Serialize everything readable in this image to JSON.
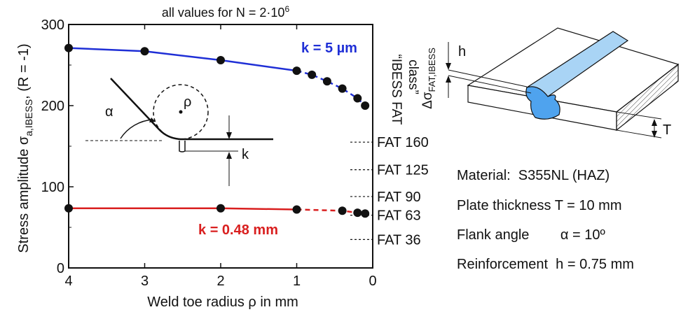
{
  "chart_data": {
    "type": "line",
    "title": "all values for N = 2·10",
    "title_sup": "6",
    "xlabel": "Weld toe radius ρ in mm",
    "ylabel_main": "Stress amplitude σ",
    "ylabel_sub": "a,IBESS",
    "ylabel_tail": ", (R = -1)",
    "xlim": [
      4,
      0
    ],
    "ylim": [
      0,
      300
    ],
    "x_ticks": [
      "4",
      "3",
      "2",
      "1",
      "0"
    ],
    "y_ticks": [
      "0",
      "100",
      "200",
      "300"
    ],
    "grid": false,
    "series": [
      {
        "name": "k = 5 µm",
        "color": "#1f2fd6",
        "points": [
          [
            4,
            271
          ],
          [
            3,
            267
          ],
          [
            2,
            256
          ],
          [
            1,
            243
          ],
          [
            0.8,
            238
          ],
          [
            0.6,
            230
          ],
          [
            0.4,
            221
          ],
          [
            0.2,
            209
          ],
          [
            0.1,
            200
          ]
        ]
      },
      {
        "name": "k = 0.48 mm",
        "color": "#d91f1f",
        "points": [
          [
            4,
            73.5
          ],
          [
            2,
            73.5
          ],
          [
            1,
            72
          ],
          [
            0.4,
            70.5
          ],
          [
            0.2,
            68
          ],
          [
            0.1,
            67
          ]
        ]
      }
    ],
    "right_axis_title_1": "“IBESS FAT",
    "right_axis_title_2": "class”",
    "fat_classes": [
      {
        "label": "FAT 160",
        "value": 155
      },
      {
        "label": "FAT 125",
        "value": 121
      },
      {
        "label": "FAT 90",
        "value": 88
      },
      {
        "label": "FAT 63",
        "value": 65
      },
      {
        "label": "FAT 36",
        "value": 35
      }
    ],
    "inset_labels": {
      "alpha": "α",
      "rho": "ρ",
      "k": "k"
    }
  },
  "schematic": {
    "label_h": "h",
    "label_T": "T",
    "axis_label_main": "Δσ",
    "axis_label_sub": "FAT,IBESS",
    "top_color": "#a9d4f5",
    "weld_color": "#4fa3ee"
  },
  "info": {
    "material": "Material:  S355NL (HAZ)",
    "thickness": "Plate thickness T = 10 mm",
    "flank": "Flank angle        α = 10º",
    "reinforcement": "Reinforcement  h = 0.75 mm"
  }
}
